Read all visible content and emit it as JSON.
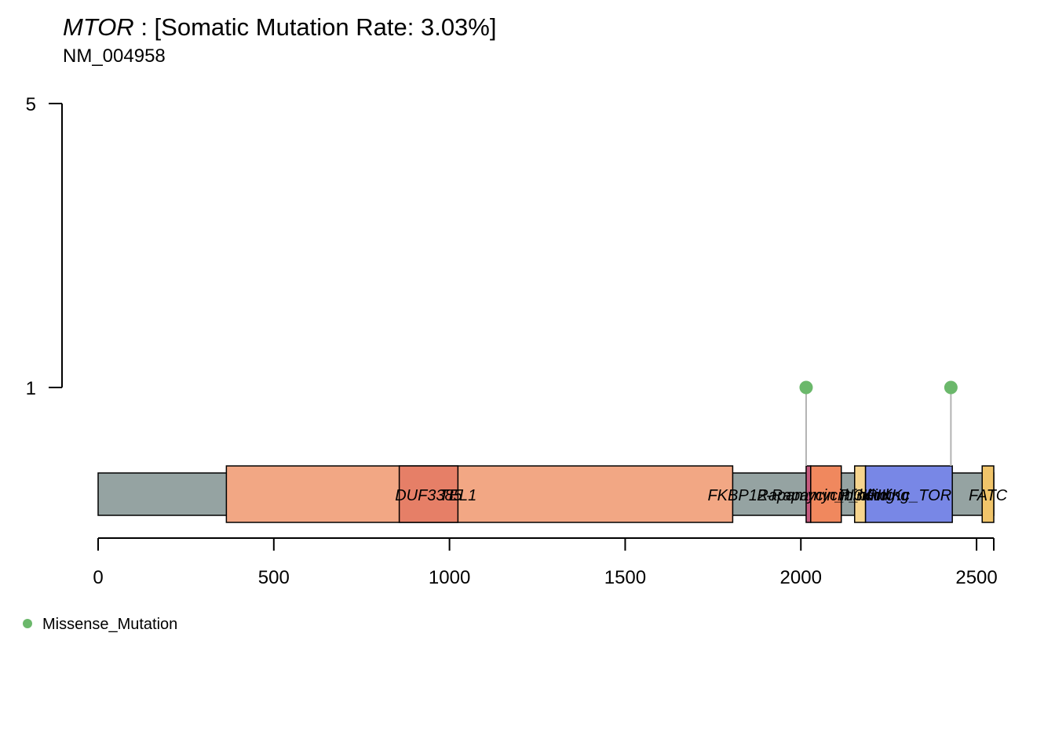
{
  "chart_data": {
    "type": "lollipop",
    "gene": "MTOR",
    "title_rest": " : [Somatic Mutation Rate: 3.03%]",
    "subtitle": "NM_004958",
    "protein_length": 2549,
    "xlim": [
      0,
      2549
    ],
    "x_ticks": [
      0,
      500,
      1000,
      1500,
      2000,
      2500
    ],
    "x_tick_labels": [
      "0",
      "500",
      "1000",
      "1500",
      "2000",
      "2500"
    ],
    "y_ticks": [
      1,
      5
    ],
    "y_tick_labels": [
      "1",
      "5"
    ],
    "y_range": [
      1,
      5
    ],
    "domains": [
      {
        "name": "",
        "start": 365,
        "end": 1806,
        "color": "#f2a784",
        "label": ""
      },
      {
        "name": "DUF3385",
        "start": 857,
        "end": 1024,
        "color": "#e67f67",
        "label": "DUF3385"
      },
      {
        "name": "TEL1",
        "start": 1024,
        "end": 1024,
        "color": "#f2a784",
        "label": "TEL1"
      },
      {
        "name": "FKBP12-rapamycin binding",
        "start": 2015,
        "end": 2028,
        "color": "#c55a7f",
        "label": "FKBP12-Rapamycin_binding"
      },
      {
        "name": "Rapamycin binding",
        "start": 2028,
        "end": 2115,
        "color": "#f0885e",
        "label": "Rapamycin_binding"
      },
      {
        "name": "PI3K",
        "start": 2153,
        "end": 2184,
        "color": "#f7d58e",
        "label": "PI3Kc"
      },
      {
        "name": "PIKKc_TOR",
        "start": 2184,
        "end": 2431,
        "color": "#7887e6",
        "label": "PIKKc_TOR"
      },
      {
        "name": "FATC",
        "start": 2516,
        "end": 2549,
        "color": "#f0c46a",
        "label": "FATC"
      }
    ],
    "mutations": [
      {
        "position": 2015,
        "count": 1,
        "type": "Missense_Mutation"
      },
      {
        "position": 2427,
        "count": 1,
        "type": "Missense_Mutation"
      }
    ],
    "legend": [
      {
        "label": "Missense_Mutation",
        "color": "#6bb86b"
      }
    ],
    "colors": {
      "protein_body": "#95a3a2",
      "stem": "#b3b3b3",
      "missense": "#6bb86b"
    }
  }
}
